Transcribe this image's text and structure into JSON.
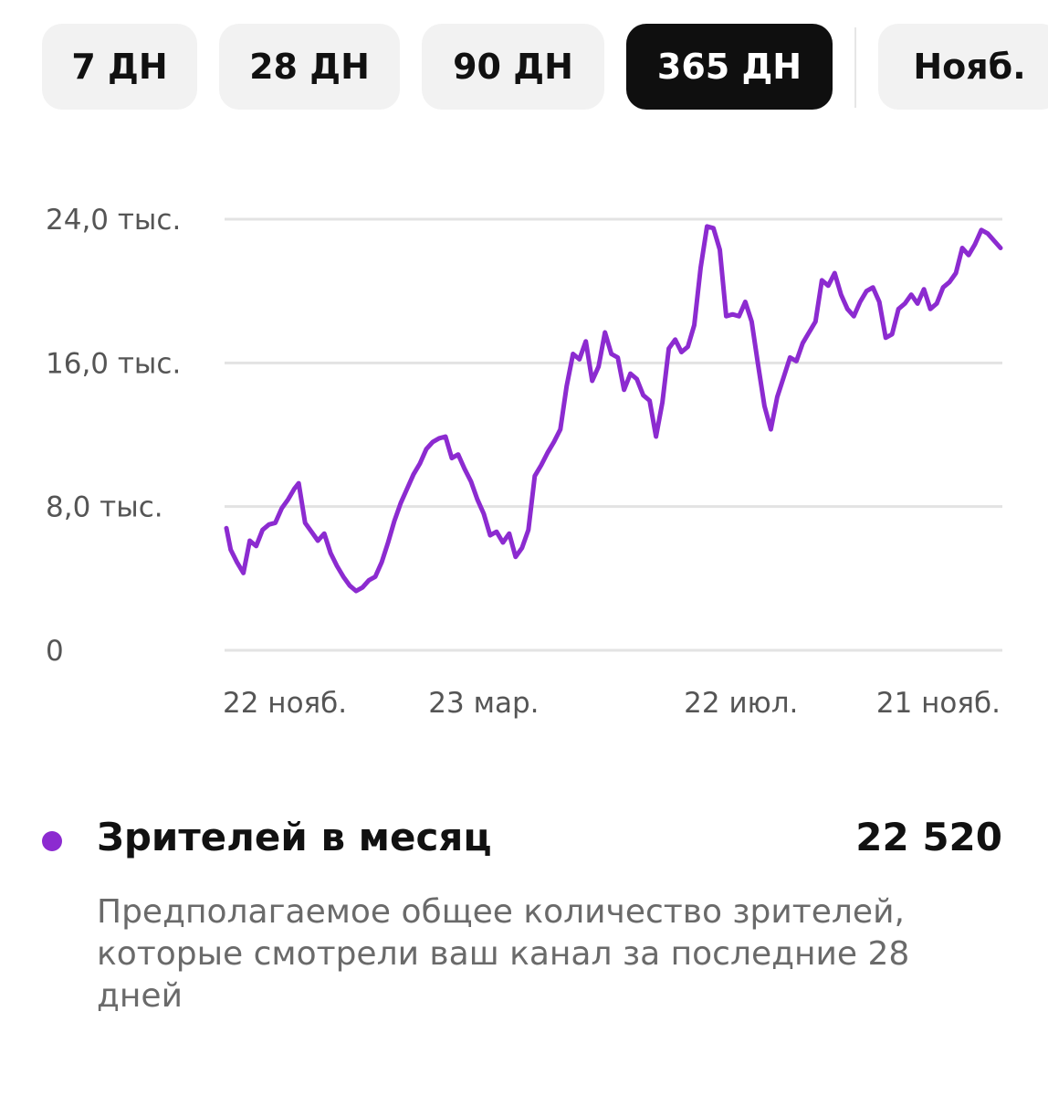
{
  "tabs": [
    {
      "label": "7 ДН",
      "active": false
    },
    {
      "label": "28 ДН",
      "active": false
    },
    {
      "label": "90 ДН",
      "active": false
    },
    {
      "label": "365 ДН",
      "active": true
    },
    {
      "label": "Нояб.",
      "active": false
    }
  ],
  "chart_data": {
    "type": "line",
    "title": "",
    "xlabel": "",
    "ylabel": "",
    "grid": true,
    "ylim": [
      0,
      24000
    ],
    "y_ticks": [
      {
        "value": 0,
        "label": "0"
      },
      {
        "value": 8000,
        "label": "8,0 тыс."
      },
      {
        "value": 16000,
        "label": "16,0 тыс."
      },
      {
        "value": 24000,
        "label": "24,0 тыс."
      }
    ],
    "x_ticks": [
      {
        "date": "2022-11-22",
        "label": "22 нояб."
      },
      {
        "date": "2023-03-23",
        "label": "23 мар."
      },
      {
        "date": "2023-07-22",
        "label": "22 июл."
      },
      {
        "date": "2023-11-21",
        "label": "21 нояб."
      }
    ],
    "color": "#8c2bd0",
    "series": [
      {
        "points": [
          [
            "2022-11-22",
            6800
          ],
          [
            "2022-11-24",
            5600
          ],
          [
            "2022-11-27",
            4900
          ],
          [
            "2022-11-30",
            4300
          ],
          [
            "2022-12-03",
            6100
          ],
          [
            "2022-12-06",
            5800
          ],
          [
            "2022-12-09",
            6700
          ],
          [
            "2022-12-12",
            7000
          ],
          [
            "2022-12-15",
            7100
          ],
          [
            "2022-12-18",
            7900
          ],
          [
            "2022-12-21",
            8400
          ],
          [
            "2022-12-24",
            9000
          ],
          [
            "2022-12-26",
            9300
          ],
          [
            "2022-12-29",
            7100
          ],
          [
            "2023-01-01",
            6600
          ],
          [
            "2023-01-04",
            6100
          ],
          [
            "2023-01-07",
            6500
          ],
          [
            "2023-01-10",
            5400
          ],
          [
            "2023-01-13",
            4700
          ],
          [
            "2023-01-16",
            4100
          ],
          [
            "2023-01-19",
            3600
          ],
          [
            "2023-01-22",
            3300
          ],
          [
            "2023-01-25",
            3500
          ],
          [
            "2023-01-28",
            3900
          ],
          [
            "2023-01-31",
            4100
          ],
          [
            "2023-02-03",
            4900
          ],
          [
            "2023-02-06",
            6000
          ],
          [
            "2023-02-09",
            7200
          ],
          [
            "2023-02-12",
            8200
          ],
          [
            "2023-02-15",
            9000
          ],
          [
            "2023-02-18",
            9800
          ],
          [
            "2023-02-21",
            10400
          ],
          [
            "2023-02-24",
            11200
          ],
          [
            "2023-02-27",
            11600
          ],
          [
            "2023-03-02",
            11800
          ],
          [
            "2023-03-05",
            11900
          ],
          [
            "2023-03-08",
            10700
          ],
          [
            "2023-03-11",
            10900
          ],
          [
            "2023-03-14",
            10100
          ],
          [
            "2023-03-17",
            9400
          ],
          [
            "2023-03-20",
            8400
          ],
          [
            "2023-03-23",
            7600
          ],
          [
            "2023-03-26",
            6400
          ],
          [
            "2023-03-29",
            6600
          ],
          [
            "2023-04-01",
            6000
          ],
          [
            "2023-04-04",
            6500
          ],
          [
            "2023-04-07",
            5200
          ],
          [
            "2023-04-10",
            5700
          ],
          [
            "2023-04-13",
            6700
          ],
          [
            "2023-04-16",
            9700
          ],
          [
            "2023-04-19",
            10300
          ],
          [
            "2023-04-22",
            11000
          ],
          [
            "2023-04-25",
            11600
          ],
          [
            "2023-04-28",
            12300
          ],
          [
            "2023-05-01",
            14700
          ],
          [
            "2023-05-04",
            16500
          ],
          [
            "2023-05-07",
            16200
          ],
          [
            "2023-05-10",
            17200
          ],
          [
            "2023-05-13",
            15000
          ],
          [
            "2023-05-16",
            15800
          ],
          [
            "2023-05-19",
            17700
          ],
          [
            "2023-05-22",
            16500
          ],
          [
            "2023-05-25",
            16300
          ],
          [
            "2023-05-28",
            14500
          ],
          [
            "2023-05-31",
            15400
          ],
          [
            "2023-06-03",
            15100
          ],
          [
            "2023-06-06",
            14200
          ],
          [
            "2023-06-09",
            13900
          ],
          [
            "2023-06-12",
            11900
          ],
          [
            "2023-06-15",
            13800
          ],
          [
            "2023-06-18",
            16800
          ],
          [
            "2023-06-21",
            17300
          ],
          [
            "2023-06-24",
            16600
          ],
          [
            "2023-06-27",
            16900
          ],
          [
            "2023-06-30",
            18100
          ],
          [
            "2023-07-03",
            21300
          ],
          [
            "2023-07-06",
            23600
          ],
          [
            "2023-07-09",
            23500
          ],
          [
            "2023-07-12",
            22300
          ],
          [
            "2023-07-15",
            18600
          ],
          [
            "2023-07-18",
            18700
          ],
          [
            "2023-07-21",
            18600
          ],
          [
            "2023-07-24",
            19400
          ],
          [
            "2023-07-27",
            18300
          ],
          [
            "2023-07-30",
            15900
          ],
          [
            "2023-08-02",
            13600
          ],
          [
            "2023-08-05",
            12300
          ],
          [
            "2023-08-08",
            14100
          ],
          [
            "2023-08-11",
            15200
          ],
          [
            "2023-08-14",
            16300
          ],
          [
            "2023-08-17",
            16100
          ],
          [
            "2023-08-20",
            17100
          ],
          [
            "2023-08-23",
            17700
          ],
          [
            "2023-08-26",
            18300
          ],
          [
            "2023-08-29",
            20600
          ],
          [
            "2023-09-01",
            20300
          ],
          [
            "2023-09-04",
            21000
          ],
          [
            "2023-09-07",
            19800
          ],
          [
            "2023-09-10",
            19000
          ],
          [
            "2023-09-13",
            18600
          ],
          [
            "2023-09-16",
            19400
          ],
          [
            "2023-09-19",
            20000
          ],
          [
            "2023-09-22",
            20200
          ],
          [
            "2023-09-25",
            19400
          ],
          [
            "2023-09-28",
            17400
          ],
          [
            "2023-10-01",
            17600
          ],
          [
            "2023-10-04",
            19000
          ],
          [
            "2023-10-07",
            19300
          ],
          [
            "2023-10-10",
            19800
          ],
          [
            "2023-10-13",
            19300
          ],
          [
            "2023-10-16",
            20100
          ],
          [
            "2023-10-19",
            19000
          ],
          [
            "2023-10-22",
            19300
          ],
          [
            "2023-10-25",
            20200
          ],
          [
            "2023-10-28",
            20500
          ],
          [
            "2023-10-31",
            21000
          ],
          [
            "2023-11-03",
            22400
          ],
          [
            "2023-11-06",
            22000
          ],
          [
            "2023-11-09",
            22600
          ],
          [
            "2023-11-12",
            23400
          ],
          [
            "2023-11-15",
            23200
          ],
          [
            "2023-11-18",
            22800
          ],
          [
            "2023-11-21",
            22400
          ]
        ]
      }
    ]
  },
  "legend": {
    "dot_color": "#8c2bd0",
    "title": "Зрителей в месяц",
    "value": "22 520",
    "description": "Предполагаемое общее количество зрителей, которые смотрели ваш канал за последние 28 дней"
  }
}
